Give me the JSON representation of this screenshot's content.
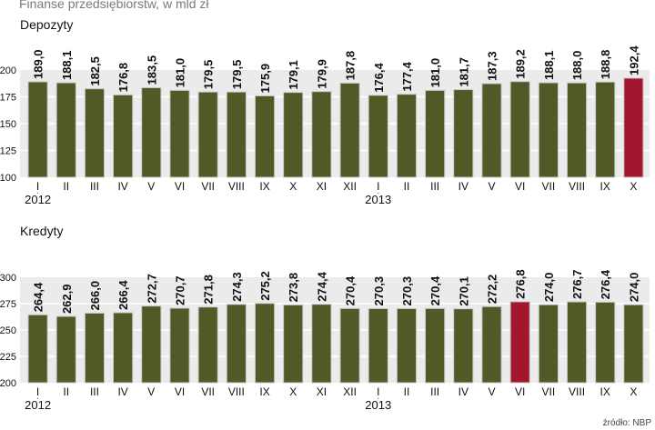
{
  "supertitle": "Finanse przedsiębiorstw, w mld zł",
  "source": "źródło: NBP",
  "colors": {
    "bar": "#505a26",
    "highlight": "#a3172e",
    "plot_bg": "#ebebeb",
    "gridline": "#ffffff",
    "text": "#111111"
  },
  "chart_data": [
    {
      "type": "bar",
      "title": "Depozyty",
      "categories": [
        "I",
        "II",
        "III",
        "IV",
        "V",
        "VI",
        "VII",
        "VIII",
        "IX",
        "X",
        "XI",
        "XII",
        "I",
        "II",
        "III",
        "IV",
        "V",
        "VI",
        "VII",
        "VIII",
        "IX",
        "X"
      ],
      "year_labels": [
        {
          "index": 0,
          "label": "2012"
        },
        {
          "index": 12,
          "label": "2013"
        }
      ],
      "values": [
        189.0,
        188.1,
        182.5,
        176.8,
        183.5,
        181.0,
        179.5,
        179.5,
        175.9,
        179.1,
        179.9,
        187.8,
        176.4,
        177.4,
        181.0,
        181.7,
        187.3,
        189.2,
        188.1,
        188.0,
        188.8,
        192.4
      ],
      "value_labels": [
        "189,0",
        "188,1",
        "182,5",
        "176,8",
        "183,5",
        "181,0",
        "179,5",
        "179,5",
        "175,9",
        "179,1",
        "179,9",
        "187,8",
        "176,4",
        "177,4",
        "181,0",
        "181,7",
        "187,3",
        "189,2",
        "188,1",
        "188,0",
        "188,8",
        "192,4"
      ],
      "highlight_index": 21,
      "yticks": [
        100,
        125,
        150,
        175,
        200
      ],
      "ylim": [
        100,
        200
      ],
      "xlabel": "",
      "ylabel": ""
    },
    {
      "type": "bar",
      "title": "Kredyty",
      "categories": [
        "I",
        "II",
        "III",
        "IV",
        "V",
        "VI",
        "VII",
        "VIII",
        "IX",
        "X",
        "XI",
        "XII",
        "I",
        "II",
        "III",
        "IV",
        "V",
        "VI",
        "VII",
        "VIII",
        "IX",
        "X"
      ],
      "year_labels": [
        {
          "index": 0,
          "label": "2012"
        },
        {
          "index": 12,
          "label": "2013"
        }
      ],
      "values": [
        264.4,
        262.9,
        266.0,
        266.4,
        272.7,
        270.7,
        271.8,
        274.3,
        275.2,
        273.8,
        274.4,
        270.4,
        270.3,
        270.3,
        270.4,
        270.1,
        272.2,
        276.8,
        274.0,
        276.7,
        276.4,
        274.0
      ],
      "value_labels": [
        "264,4",
        "262,9",
        "266,0",
        "266,4",
        "272,7",
        "270,7",
        "271,8",
        "274,3",
        "275,2",
        "273,8",
        "274,4",
        "270,4",
        "270,3",
        "270,3",
        "270,4",
        "270,1",
        "272,2",
        "276,8",
        "274,0",
        "276,7",
        "276,4",
        "274,0"
      ],
      "highlight_index": 17,
      "yticks": [
        200,
        225,
        250,
        275,
        300
      ],
      "ylim": [
        200,
        300
      ],
      "xlabel": "",
      "ylabel": ""
    }
  ]
}
